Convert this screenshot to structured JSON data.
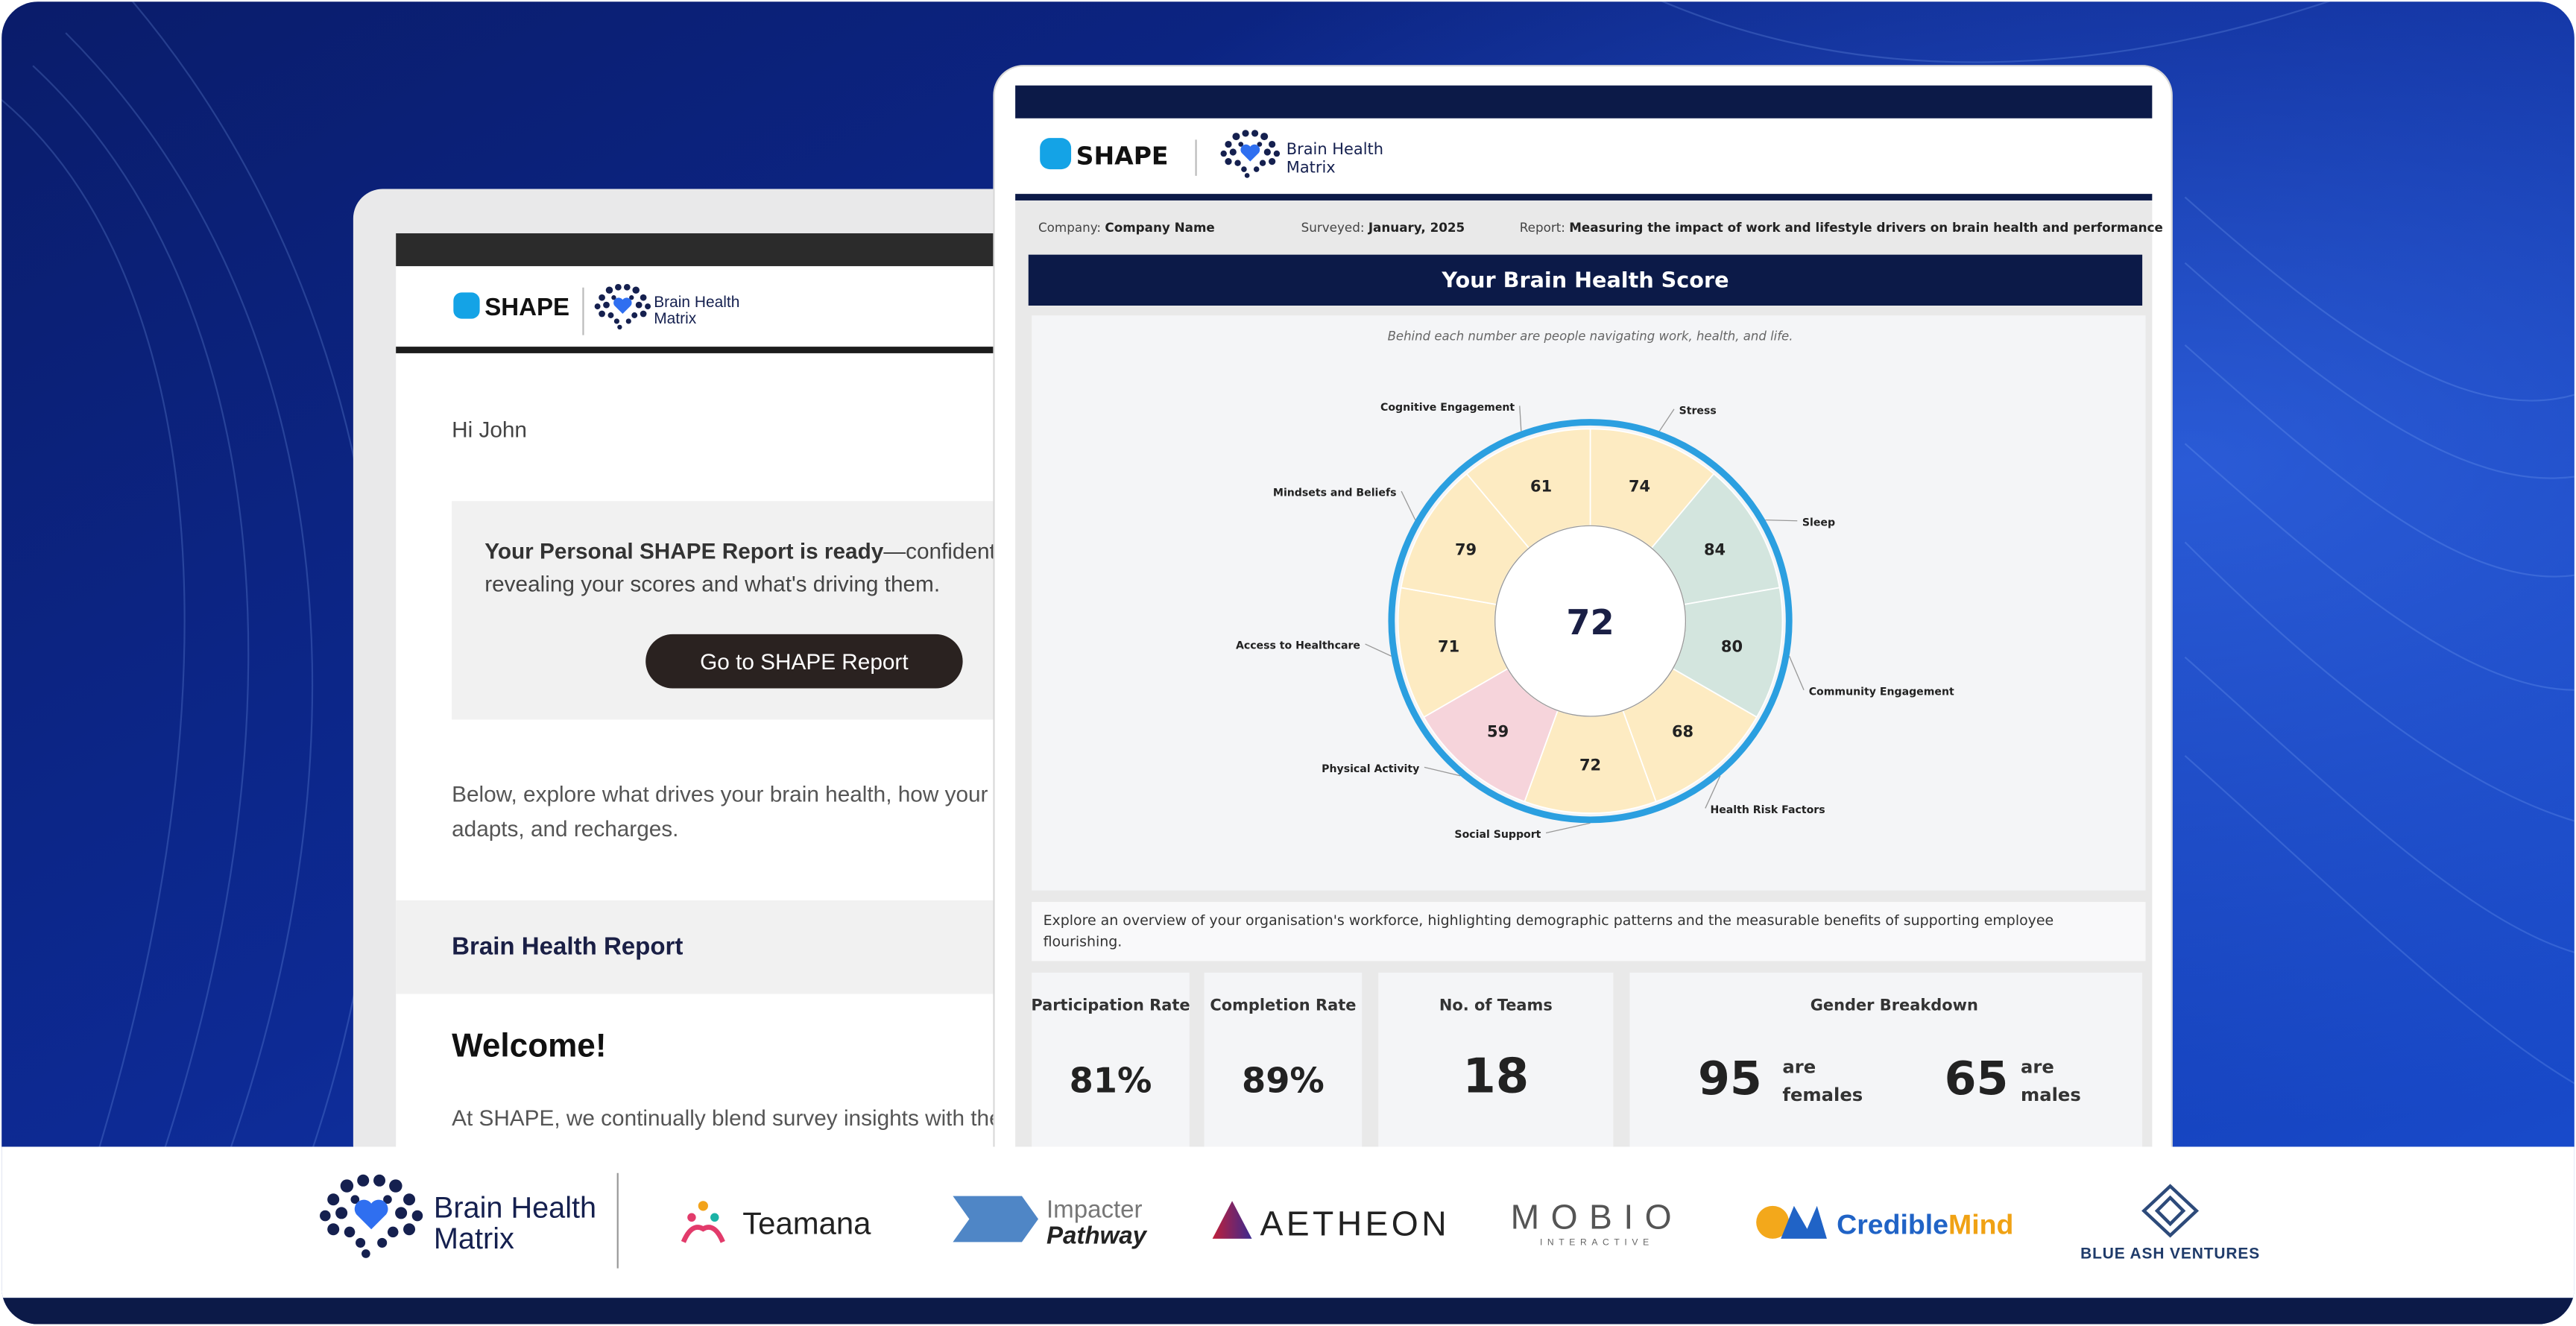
{
  "email": {
    "logo_word": "SHAPE",
    "logo_bhm_line1": "Brain Health",
    "logo_bhm_line2": "Matrix",
    "greeting": "Hi John",
    "callout_bold": "Your Personal SHAPE Report is ready",
    "callout_rest": "—confidenti",
    "callout_line2": "revealing your scores and what's driving them.",
    "button": "Go to SHAPE Report",
    "body_line1": "Below, explore what drives your brain health, how your r",
    "body_line2": "adapts, and recharges.",
    "section_title": "Brain Health Report",
    "welcome": "Welcome!",
    "welcome_line1": "At SHAPE, we continually blend survey insights with the"
  },
  "report": {
    "logo_word": "SHAPE",
    "logo_bhm_line1": "Brain Health",
    "logo_bhm_line2": "Matrix",
    "company_label": "Company:",
    "company": "Company Name",
    "surveyed_label": "Surveyed:",
    "surveyed": "January, 2025",
    "report_label": "Report:",
    "report": "Measuring the impact of work and lifestyle drivers on brain health and performance",
    "title": "Your Brain Health Score",
    "subtitle": "Behind each number are people navigating work, health, and life.",
    "score": 72,
    "segments": [
      {
        "name": "Stress",
        "value": 74,
        "color": "#fdebc2"
      },
      {
        "name": "Sleep",
        "value": 84,
        "color": "#d3e5de"
      },
      {
        "name": "Community Engagement",
        "value": 80,
        "color": "#d3e5de"
      },
      {
        "name": "Health Risk Factors",
        "value": 68,
        "color": "#fdebc2"
      },
      {
        "name": "Social Support",
        "value": 72,
        "color": "#fdebc2"
      },
      {
        "name": "Physical Activity",
        "value": 59,
        "color": "#f6d4db"
      },
      {
        "name": "Access to Healthcare",
        "value": 71,
        "color": "#fdebc2"
      },
      {
        "name": "Mindsets and Beliefs",
        "value": 79,
        "color": "#fdebc2"
      },
      {
        "name": "Cognitive Engagement",
        "value": 61,
        "color": "#fdebc2"
      }
    ],
    "overview_line1": "Explore an overview of your organisation's workforce, highlighting demographic patterns and the measurable benefits of supporting employee",
    "overview_line2": "flourishing.",
    "stats": [
      {
        "label": "Participation Rate",
        "value": "81%"
      },
      {
        "label": "Completion Rate",
        "value": "89%"
      },
      {
        "label": "No. of Teams",
        "value": "18"
      }
    ],
    "gender": {
      "title": "Gender Breakdown",
      "females": 95,
      "females_are": "are",
      "females_label": "females",
      "males": 65,
      "males_are": "are",
      "males_label": "males"
    }
  },
  "partners": {
    "bhm_line1": "Brain Health",
    "bhm_line2": "Matrix",
    "teamana": "Teamana",
    "impacter": "Impacter",
    "pathway": "Pathway",
    "aetheon": "AETHEON",
    "mobio": "MOBIO",
    "mobio_sub": "INTERACTIVE",
    "credible": "Credible",
    "mind": "Mind",
    "blue_ash": "BLUE ASH VENTURES"
  }
}
